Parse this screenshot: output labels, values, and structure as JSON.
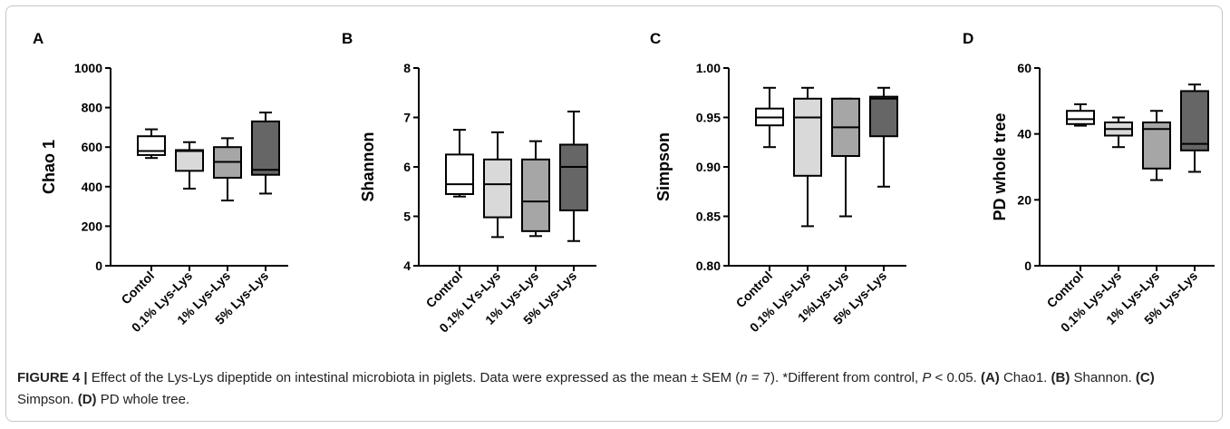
{
  "chart_data": [
    {
      "type": "box",
      "panel_label": "A",
      "ylabel": "Chao 1",
      "ylim": [
        0,
        1000
      ],
      "yticks": [
        0,
        200,
        400,
        600,
        800,
        1000
      ],
      "categories": [
        "Contol",
        "0.1% Lys-Lys",
        "1% Lys-Lys",
        "5% Lys-Lys"
      ],
      "fills": [
        "#ffffff",
        "#d9d9d9",
        "#a6a6a6",
        "#666666"
      ],
      "boxes": [
        {
          "min": 545,
          "q1": 560,
          "median": 580,
          "q3": 655,
          "max": 690
        },
        {
          "min": 390,
          "q1": 480,
          "median": 580,
          "q3": 585,
          "max": 625
        },
        {
          "min": 330,
          "q1": 445,
          "median": 525,
          "q3": 600,
          "max": 645
        },
        {
          "min": 365,
          "q1": 460,
          "median": 485,
          "q3": 730,
          "max": 775
        }
      ]
    },
    {
      "type": "box",
      "panel_label": "B",
      "ylabel": "Shannon",
      "ylim": [
        4,
        8
      ],
      "yticks": [
        4,
        5,
        6,
        7,
        8
      ],
      "categories": [
        "Control",
        "0.1% LYs-Lys",
        "1% Lys-Lys",
        "5% Lys-Lys"
      ],
      "fills": [
        "#ffffff",
        "#d9d9d9",
        "#a6a6a6",
        "#666666"
      ],
      "boxes": [
        {
          "min": 5.4,
          "q1": 5.45,
          "median": 5.65,
          "q3": 6.25,
          "max": 6.75
        },
        {
          "min": 4.58,
          "q1": 4.98,
          "median": 5.65,
          "q3": 6.15,
          "max": 6.7
        },
        {
          "min": 4.6,
          "q1": 4.7,
          "median": 5.3,
          "q3": 6.15,
          "max": 6.52
        },
        {
          "min": 4.5,
          "q1": 5.12,
          "median": 6.0,
          "q3": 6.45,
          "max": 7.12
        }
      ]
    },
    {
      "type": "box",
      "panel_label": "C",
      "ylabel": "Simpson",
      "ylim": [
        0.8,
        1.0
      ],
      "yticks": [
        "0.80",
        "0.85",
        "0.90",
        "0.95",
        "1.00"
      ],
      "categories": [
        "Control",
        "0.1% Lys-Lys",
        "1%Lys-Lys",
        "5% Lys-Lys"
      ],
      "fills": [
        "#ffffff",
        "#d9d9d9",
        "#a6a6a6",
        "#666666"
      ],
      "boxes": [
        {
          "min": 0.92,
          "q1": 0.942,
          "median": 0.95,
          "q3": 0.959,
          "max": 0.98
        },
        {
          "min": 0.84,
          "q1": 0.891,
          "median": 0.95,
          "q3": 0.969,
          "max": 0.98
        },
        {
          "min": 0.85,
          "q1": 0.911,
          "median": 0.94,
          "q3": 0.969,
          "max": 0.969
        },
        {
          "min": 0.88,
          "q1": 0.931,
          "median": 0.969,
          "q3": 0.971,
          "max": 0.98
        }
      ]
    },
    {
      "type": "box",
      "panel_label": "D",
      "ylabel": "PD whole tree",
      "ylim": [
        0,
        60
      ],
      "yticks": [
        0,
        20,
        40,
        60
      ],
      "categories": [
        "Control",
        "0.1% Lys-Lys",
        "1% Lys-Lys",
        "5% Lys-Lys"
      ],
      "fills": [
        "#ffffff",
        "#d9d9d9",
        "#a6a6a6",
        "#666666"
      ],
      "boxes": [
        {
          "min": 42.5,
          "q1": 43.0,
          "median": 44.5,
          "q3": 47.0,
          "max": 49.0
        },
        {
          "min": 36.0,
          "q1": 39.5,
          "median": 41.5,
          "q3": 43.5,
          "max": 45.0
        },
        {
          "min": 26.0,
          "q1": 29.5,
          "median": 41.5,
          "q3": 43.5,
          "max": 47.0
        },
        {
          "min": 28.5,
          "q1": 35.0,
          "median": 37.0,
          "q3": 53.0,
          "max": 55.0
        }
      ]
    }
  ],
  "caption": {
    "figure_label": "FIGURE 4 |",
    "text1": " Effect of the Lys-Lys dipeptide on intestinal microbiota in piglets. Data were expressed as the mean ± SEM (",
    "n_italic": "n",
    "text2": " = 7). *Different from control, ",
    "p_italic": "P",
    "text3": " < 0.05. ",
    "a_label": "(A)",
    "a_text": " Chao1. ",
    "b_label": "(B)",
    "b_text": " Shannon. ",
    "c_label": "(C)",
    "c_text": " Simpson. ",
    "d_label": "(D)",
    "d_text": " PD whole tree."
  }
}
